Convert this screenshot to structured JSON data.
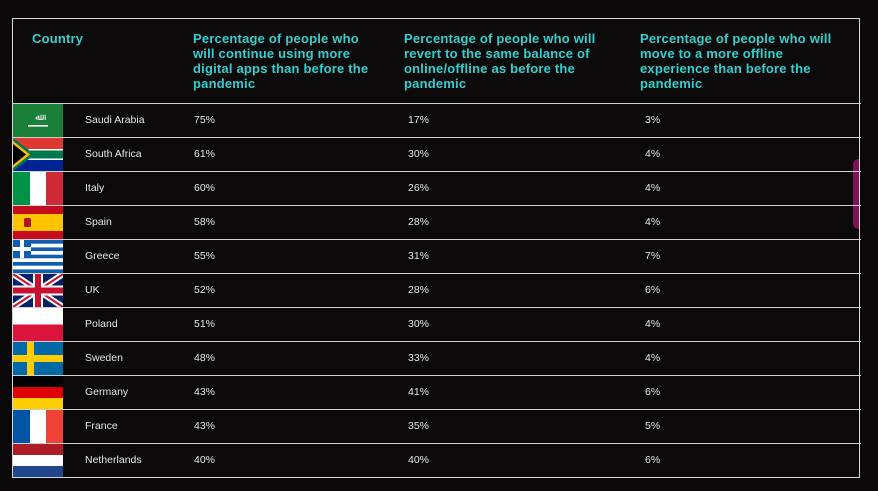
{
  "chart_data": {
    "type": "table",
    "columns": [
      "Country",
      "Percentage of people who will continue using more digital apps than before the pandemic",
      "Percentage of people who will revert to the same balance of online/offline as before the pandemic",
      "Percentage of people who will move to a more offline experience than before the pandemic"
    ],
    "headers": {
      "country": "Country",
      "col1": "Percentage of people who will continue using more digital apps than before the pandemic",
      "col2": "Percentage of people who will revert to the same balance of online/offline as before the pandemic",
      "col3": "Percentage of people who will move to a more offline experience than before the pandemic"
    },
    "rows": [
      {
        "country": "Saudi Arabia",
        "v1": "75%",
        "v2": "17%",
        "v3": "3%",
        "flag": "saudi-arabia"
      },
      {
        "country": "South Africa",
        "v1": "61%",
        "v2": "30%",
        "v3": "4%",
        "flag": "south-africa"
      },
      {
        "country": "Italy",
        "v1": "60%",
        "v2": "26%",
        "v3": "4%",
        "flag": "italy"
      },
      {
        "country": "Spain",
        "v1": "58%",
        "v2": "28%",
        "v3": "4%",
        "flag": "spain"
      },
      {
        "country": "Greece",
        "v1": "55%",
        "v2": "31%",
        "v3": "7%",
        "flag": "greece"
      },
      {
        "country": "UK",
        "v1": "52%",
        "v2": "28%",
        "v3": "6%",
        "flag": "uk"
      },
      {
        "country": "Poland",
        "v1": "51%",
        "v2": "30%",
        "v3": "4%",
        "flag": "poland"
      },
      {
        "country": "Sweden",
        "v1": "48%",
        "v2": "33%",
        "v3": "4%",
        "flag": "sweden"
      },
      {
        "country": "Germany",
        "v1": "43%",
        "v2": "41%",
        "v3": "6%",
        "flag": "germany"
      },
      {
        "country": "France",
        "v1": "43%",
        "v2": "35%",
        "v3": "5%",
        "flag": "france"
      },
      {
        "country": "Netherlands",
        "v1": "40%",
        "v2": "40%",
        "v3": "6%",
        "flag": "netherlands"
      }
    ]
  },
  "colors": {
    "header_text": "#2fd2d0",
    "body_text": "#e8e8e8",
    "background": "#0a0808",
    "grid": "#cfcfcf"
  }
}
